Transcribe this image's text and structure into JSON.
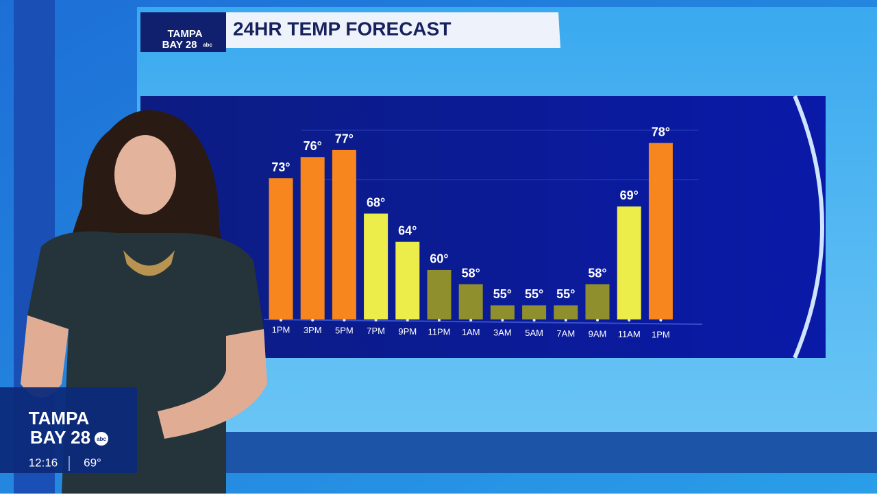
{
  "header": {
    "logo": [
      "TAMPA",
      "BAY 28"
    ],
    "network": "abc",
    "title": "24HR TEMP FORECAST"
  },
  "chart_data": {
    "type": "bar",
    "categories": [
      "1PM",
      "3PM",
      "5PM",
      "7PM",
      "9PM",
      "11PM",
      "1AM",
      "3AM",
      "5AM",
      "7AM",
      "9AM",
      "11AM",
      "1PM"
    ],
    "values": [
      73,
      76,
      77,
      68,
      64,
      60,
      58,
      55,
      55,
      55,
      58,
      69,
      78
    ],
    "value_labels": [
      "73°",
      "76°",
      "77°",
      "68°",
      "64°",
      "60°",
      "58°",
      "55°",
      "55°",
      "55°",
      "58°",
      "69°",
      "78°"
    ],
    "colors": [
      "#f7861e",
      "#f7861e",
      "#f7861e",
      "#ecec4a",
      "#ecec4a",
      "#8f8f2e",
      "#8f8f2e",
      "#8f8f2e",
      "#8f8f2e",
      "#8f8f2e",
      "#8f8f2e",
      "#ecec4a",
      "#f7861e"
    ],
    "ylim": [
      53,
      80
    ]
  },
  "bug": {
    "logo": [
      "TAMPA",
      "BAY 28"
    ],
    "network": "abc",
    "time": "12:16",
    "temperature": "69°"
  }
}
